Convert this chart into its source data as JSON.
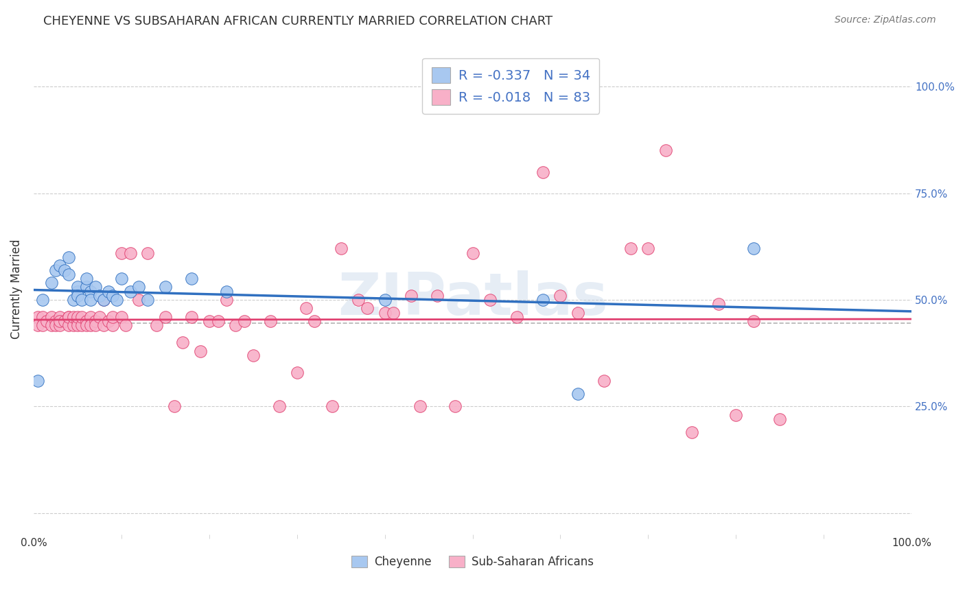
{
  "title": "CHEYENNE VS SUBSAHARAN AFRICAN CURRENTLY MARRIED CORRELATION CHART",
  "source": "Source: ZipAtlas.com",
  "ylabel": "Currently Married",
  "watermark": "ZIPatlas",
  "cheyenne_color": "#a8c8f0",
  "cheyenne_line_color": "#3070c0",
  "subsaharan_color": "#f8b0c8",
  "subsaharan_line_color": "#e04070",
  "dashed_line_color": "#aaaaaa",
  "legend_label_cheyenne": "Cheyenne",
  "legend_label_subsaharan": "Sub-Saharan Africans",
  "xlim": [
    0,
    1
  ],
  "ylim": [
    -0.05,
    1.1
  ],
  "cheyenne_x": [
    0.005,
    0.01,
    0.02,
    0.025,
    0.03,
    0.035,
    0.04,
    0.04,
    0.045,
    0.05,
    0.05,
    0.05,
    0.055,
    0.06,
    0.06,
    0.065,
    0.065,
    0.07,
    0.075,
    0.08,
    0.085,
    0.09,
    0.095,
    0.1,
    0.11,
    0.12,
    0.13,
    0.15,
    0.18,
    0.22,
    0.4,
    0.58,
    0.62,
    0.82
  ],
  "cheyenne_y": [
    0.31,
    0.5,
    0.54,
    0.57,
    0.58,
    0.57,
    0.56,
    0.6,
    0.5,
    0.52,
    0.53,
    0.51,
    0.5,
    0.53,
    0.55,
    0.52,
    0.5,
    0.53,
    0.51,
    0.5,
    0.52,
    0.51,
    0.5,
    0.55,
    0.52,
    0.53,
    0.5,
    0.53,
    0.55,
    0.52,
    0.5,
    0.5,
    0.28,
    0.62
  ],
  "subsaharan_x": [
    0.005,
    0.005,
    0.01,
    0.01,
    0.015,
    0.02,
    0.02,
    0.025,
    0.025,
    0.03,
    0.03,
    0.03,
    0.035,
    0.04,
    0.04,
    0.04,
    0.045,
    0.045,
    0.05,
    0.05,
    0.05,
    0.055,
    0.055,
    0.06,
    0.06,
    0.065,
    0.065,
    0.07,
    0.07,
    0.075,
    0.08,
    0.08,
    0.085,
    0.09,
    0.09,
    0.1,
    0.1,
    0.105,
    0.11,
    0.12,
    0.13,
    0.14,
    0.15,
    0.16,
    0.17,
    0.18,
    0.19,
    0.2,
    0.21,
    0.22,
    0.23,
    0.24,
    0.25,
    0.27,
    0.28,
    0.3,
    0.31,
    0.32,
    0.34,
    0.35,
    0.37,
    0.38,
    0.4,
    0.41,
    0.43,
    0.44,
    0.46,
    0.48,
    0.5,
    0.52,
    0.55,
    0.58,
    0.6,
    0.62,
    0.65,
    0.68,
    0.7,
    0.72,
    0.75,
    0.78,
    0.8,
    0.82,
    0.85
  ],
  "subsaharan_y": [
    0.46,
    0.44,
    0.46,
    0.44,
    0.45,
    0.46,
    0.44,
    0.45,
    0.44,
    0.46,
    0.44,
    0.45,
    0.45,
    0.46,
    0.44,
    0.46,
    0.44,
    0.46,
    0.45,
    0.44,
    0.46,
    0.44,
    0.46,
    0.45,
    0.44,
    0.46,
    0.44,
    0.45,
    0.44,
    0.46,
    0.44,
    0.5,
    0.45,
    0.44,
    0.46,
    0.46,
    0.61,
    0.44,
    0.61,
    0.5,
    0.61,
    0.44,
    0.46,
    0.25,
    0.4,
    0.46,
    0.38,
    0.45,
    0.45,
    0.5,
    0.44,
    0.45,
    0.37,
    0.45,
    0.25,
    0.33,
    0.48,
    0.45,
    0.25,
    0.62,
    0.5,
    0.48,
    0.47,
    0.47,
    0.51,
    0.25,
    0.51,
    0.25,
    0.61,
    0.5,
    0.46,
    0.8,
    0.51,
    0.47,
    0.31,
    0.62,
    0.62,
    0.85,
    0.19,
    0.49,
    0.23,
    0.45,
    0.22
  ]
}
